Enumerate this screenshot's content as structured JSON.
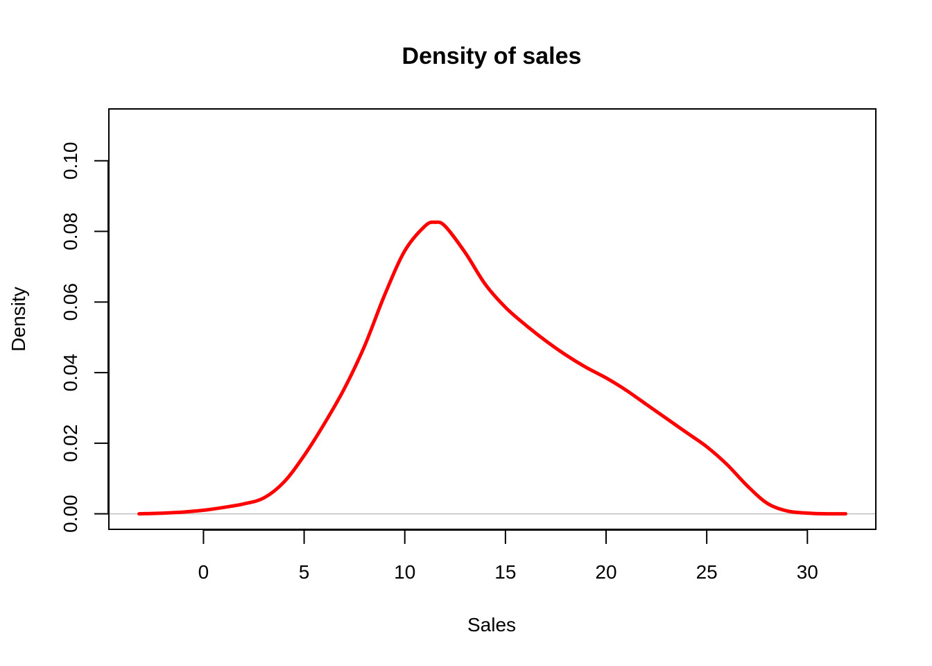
{
  "chart_data": {
    "type": "line",
    "title": "Density of sales",
    "xlabel": "Sales",
    "ylabel": "Density",
    "xlim": [
      -4.7,
      33.4
    ],
    "ylim": [
      -0.0044,
      0.1147
    ],
    "x_ticks": [
      0,
      5,
      10,
      15,
      20,
      25,
      30
    ],
    "x_tick_labels": [
      "0",
      "5",
      "10",
      "15",
      "20",
      "25",
      "30"
    ],
    "y_ticks": [
      0.0,
      0.02,
      0.04,
      0.06,
      0.08,
      0.1
    ],
    "y_tick_labels": [
      "0.00",
      "0.02",
      "0.04",
      "0.06",
      "0.08",
      "0.10"
    ],
    "baseline": 0,
    "grid": false,
    "colors": {
      "line": "#ff0000",
      "baseline": "#bebebe",
      "axes": "#000000"
    },
    "series": [
      {
        "x": [
          -3.2,
          -2,
          -1,
          0,
          1,
          2,
          3,
          4,
          5,
          6,
          7,
          8,
          9,
          10,
          11,
          11.5,
          12,
          13,
          14,
          15,
          16,
          17,
          18,
          19,
          20,
          21,
          22,
          23,
          24,
          25,
          26,
          27,
          28,
          29,
          30,
          31,
          31.9
        ],
        "values": [
          0.0,
          0.0002,
          0.0005,
          0.001,
          0.0018,
          0.0028,
          0.0045,
          0.009,
          0.0165,
          0.0255,
          0.0355,
          0.0475,
          0.062,
          0.0745,
          0.0815,
          0.0826,
          0.0815,
          0.074,
          0.065,
          0.0585,
          0.0535,
          0.049,
          0.045,
          0.0415,
          0.0385,
          0.035,
          0.031,
          0.027,
          0.023,
          0.019,
          0.014,
          0.008,
          0.003,
          0.0008,
          0.0002,
          0.0,
          0.0
        ]
      }
    ]
  }
}
